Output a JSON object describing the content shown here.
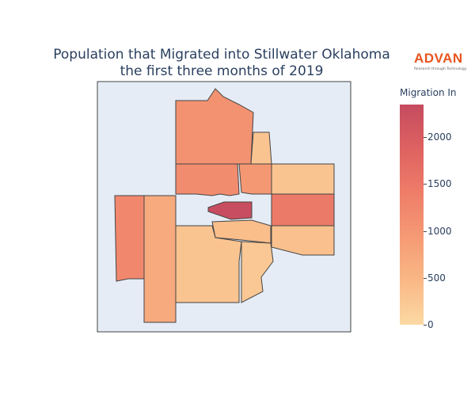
{
  "chart": {
    "title_line1": "Population that Migrated into Stillwater Oklahoma",
    "title_line2": "the first three months of 2019"
  },
  "logo": {
    "name": "ADVAN",
    "tagline": "Research through Technology"
  },
  "colorbar": {
    "title": "Migration In",
    "ticks": [
      "2000",
      "1500",
      "1000",
      "500",
      "0"
    ],
    "colors": [
      "#fcd9a3",
      "#f9b886",
      "#f59a74",
      "#ee7d69",
      "#de6261",
      "#c54b60"
    ]
  },
  "map": {
    "background": "#e5ecf6"
  },
  "chart_data": {
    "type": "heatmap",
    "title": "Population that Migrated into Stillwater Oklahoma the first three months of 2019",
    "colorbar_title": "Migration In",
    "zmin": 0,
    "zmax": 2400,
    "regions": [
      {
        "id": "north-large",
        "value": 1100
      },
      {
        "id": "north-narrow",
        "value": 300
      },
      {
        "id": "central-west",
        "value": 1200
      },
      {
        "id": "central-northeast",
        "value": 1000
      },
      {
        "id": "east-upper",
        "value": 300
      },
      {
        "id": "east-middle",
        "value": 1500
      },
      {
        "id": "east-lower",
        "value": 350
      },
      {
        "id": "west-narrow",
        "value": 1250
      },
      {
        "id": "west-strip",
        "value": 700
      },
      {
        "id": "center-core",
        "value": 2350
      },
      {
        "id": "center-south",
        "value": 400
      },
      {
        "id": "southwest",
        "value": 300
      },
      {
        "id": "south-central",
        "value": 250
      }
    ]
  }
}
